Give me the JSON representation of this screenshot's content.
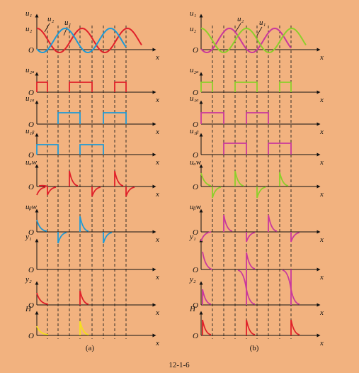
{
  "figure_id": "12-1-6",
  "panels": [
    {
      "caption": "(a)",
      "header_labels": [
        "u1",
        "u2",
        "u2",
        "u1"
      ],
      "rows": [
        {
          "label": "u₁",
          "label2": "u₂",
          "zero": "O",
          "axis": "x"
        },
        {
          "label": "u₂ₐ",
          "zero": "O",
          "axis": "x"
        },
        {
          "label": "u₁ₐ",
          "zero": "O",
          "axis": "x"
        },
        {
          "label": "u₁ᵦ",
          "zero": "O",
          "axis": "x"
        },
        {
          "label": "uₐw",
          "zero": "O",
          "axis": "x"
        },
        {
          "label": "uᵦw",
          "zero": "O",
          "axis": "x"
        },
        {
          "label": "y₁",
          "zero": "O",
          "axis": "x"
        },
        {
          "label": "y₂",
          "zero": "O",
          "axis": "x"
        },
        {
          "label": "H",
          "zero": "O",
          "axis": "x"
        }
      ]
    },
    {
      "caption": "(b)",
      "rows": [
        {
          "label": "u₁",
          "label2": "u₂",
          "zero": "O",
          "axis": "x"
        },
        {
          "label": "u₂ₐ",
          "zero": "O",
          "axis": "x"
        },
        {
          "label": "u₁ₐ",
          "zero": "O",
          "axis": "x"
        },
        {
          "label": "u₁ᵦ",
          "zero": "O",
          "axis": "x"
        },
        {
          "label": "uₐw",
          "zero": "O",
          "axis": "x"
        },
        {
          "label": "uᵦw",
          "zero": "O",
          "axis": "x"
        },
        {
          "label": "y₁",
          "zero": "O",
          "axis": "x"
        },
        {
          "label": "y₂",
          "zero": "O",
          "axis": "x"
        },
        {
          "label": "H",
          "zero": "O",
          "axis": "x"
        }
      ]
    }
  ],
  "colors": {
    "background": "#f2b27f",
    "a_u1": "#e0202a",
    "a_u2": "#1e9ad6",
    "a_h": "#f5e11a",
    "b_u1": "#c9389c",
    "b_u2": "#8ccf2a"
  }
}
